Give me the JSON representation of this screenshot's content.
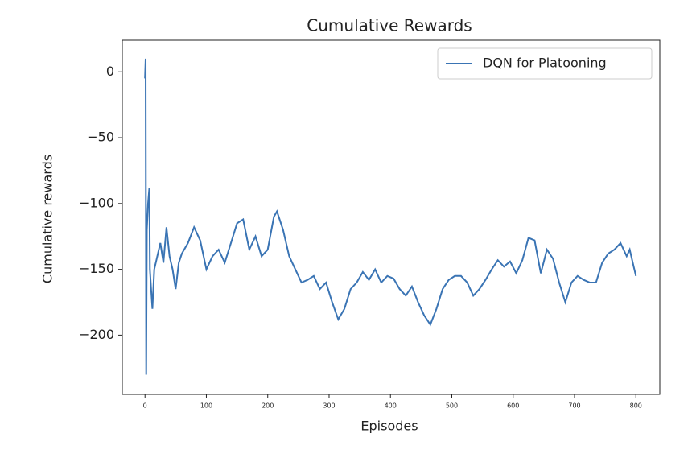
{
  "chart_data": {
    "type": "line",
    "title": "Cumulative Rewards",
    "x_label": "Episodes",
    "y_label": "Cumulative rewards",
    "x": [
      0,
      1,
      2,
      3,
      5,
      7,
      8,
      10,
      12,
      15,
      20,
      25,
      30,
      35,
      40,
      45,
      50,
      55,
      60,
      70,
      80,
      90,
      100,
      110,
      120,
      130,
      140,
      150,
      160,
      170,
      180,
      190,
      200,
      210,
      215,
      225,
      235,
      245,
      255,
      265,
      275,
      285,
      295,
      305,
      315,
      325,
      335,
      345,
      355,
      365,
      375,
      385,
      395,
      405,
      415,
      425,
      435,
      445,
      455,
      465,
      475,
      485,
      495,
      505,
      515,
      525,
      535,
      545,
      555,
      565,
      575,
      585,
      595,
      605,
      615,
      625,
      635,
      645,
      655,
      665,
      675,
      685,
      695,
      705,
      715,
      725,
      735,
      745,
      755,
      765,
      775,
      785,
      790,
      795,
      800
    ],
    "series": [
      {
        "name": "DQN for Platooning",
        "color": "#3a74b4",
        "values": [
          -5,
          10,
          -230,
          -120,
          -100,
          -88,
          -150,
          -165,
          -180,
          -150,
          -140,
          -130,
          -145,
          -118,
          -140,
          -150,
          -165,
          -145,
          -138,
          -130,
          -118,
          -128,
          -150,
          -140,
          -135,
          -145,
          -130,
          -115,
          -112,
          -135,
          -125,
          -140,
          -135,
          -110,
          -106,
          -120,
          -140,
          -150,
          -160,
          -158,
          -155,
          -165,
          -160,
          -175,
          -188,
          -180,
          -165,
          -160,
          -152,
          -158,
          -150,
          -160,
          -155,
          -157,
          -165,
          -170,
          -163,
          -175,
          -185,
          -192,
          -180,
          -165,
          -158,
          -155,
          -155,
          -160,
          -170,
          -165,
          -158,
          -150,
          -143,
          -148,
          -144,
          -153,
          -143,
          -126,
          -128,
          -153,
          -135,
          -142,
          -160,
          -175,
          -160,
          -155,
          -158,
          -160,
          -160,
          -145,
          -138,
          -135,
          -130,
          -140,
          -135,
          -145,
          -155
        ]
      }
    ],
    "xlim": [
      -37,
      839
    ],
    "ylim": [
      -245,
      24
    ],
    "xticks": [
      0,
      100,
      200,
      300,
      400,
      500,
      600,
      700,
      800
    ],
    "yticks": [
      {
        "value": -200,
        "label": "−200"
      },
      {
        "value": -150,
        "label": "−150"
      },
      {
        "value": -100,
        "label": "−100"
      },
      {
        "value": -50,
        "label": "−50"
      },
      0
    ],
    "legend": "upper right"
  }
}
